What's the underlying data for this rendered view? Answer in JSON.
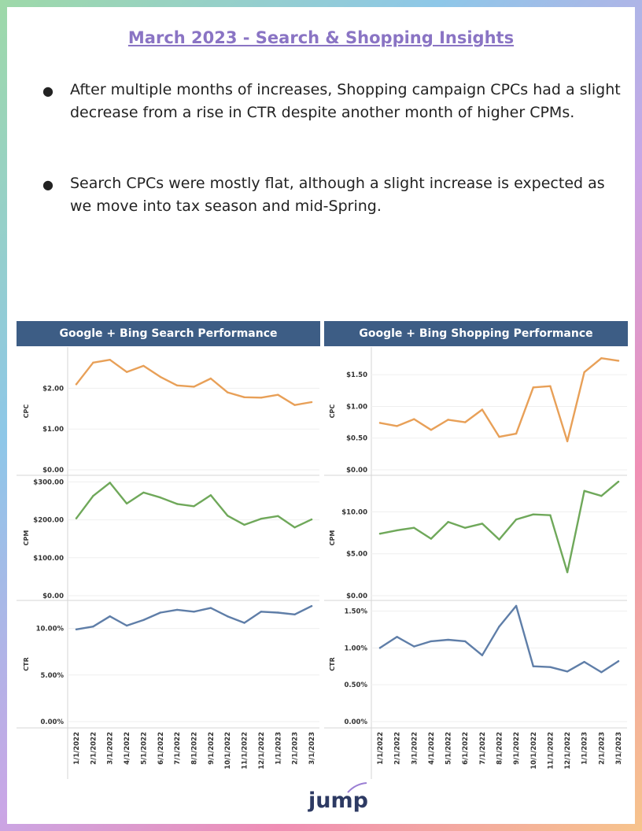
{
  "page": {
    "title": "March 2023 - Search & Shopping Insights",
    "bullets": [
      "After multiple months of increases, Shopping campaign CPCs had a slight decrease from a rise in CTR despite another month of higher CPMs.",
      "Search CPCs were mostly flat, although a slight increase is expected as we move into tax season and mid-Spring."
    ],
    "logo": "jump"
  },
  "colors": {
    "cpc": "#e8a058",
    "cpm": "#6fa85a",
    "ctr": "#5f7ea8",
    "header": "#3d5d85",
    "title": "#8a74c4"
  },
  "chart_data": [
    {
      "type": "line",
      "title": "Google + Bing Search Performance",
      "x": [
        "1/1/2022",
        "2/1/2022",
        "3/1/2022",
        "4/1/2022",
        "5/1/2022",
        "6/1/2022",
        "7/1/2022",
        "8/1/2022",
        "9/1/2022",
        "10/1/2022",
        "11/1/2022",
        "12/1/2022",
        "1/1/2023",
        "2/1/2023",
        "3/1/2023"
      ],
      "panels": [
        {
          "ylabel": "CPC",
          "ylim": [
            0,
            2.8
          ],
          "ticks": [
            0,
            1,
            2
          ],
          "tick_labels": [
            "$0.00",
            "$1.00",
            "$2.00"
          ],
          "values": [
            2.1,
            2.63,
            2.7,
            2.4,
            2.55,
            2.28,
            2.07,
            2.04,
            2.24,
            1.9,
            1.78,
            1.77,
            1.84,
            1.59,
            1.66
          ]
        },
        {
          "ylabel": "CPM",
          "ylim": [
            0,
            305
          ],
          "ticks": [
            0,
            100,
            200,
            300
          ],
          "tick_labels": [
            "$0.00",
            "$100.00",
            "$200.00",
            "$300.00"
          ],
          "values": [
            204,
            263,
            298,
            243,
            272,
            259,
            242,
            236,
            265,
            211,
            187,
            203,
            210,
            180,
            201
          ]
        },
        {
          "ylabel": "CTR",
          "ylim": [
            0,
            12.5
          ],
          "ticks": [
            0,
            5,
            10
          ],
          "tick_labels": [
            "0.00%",
            "5.00%",
            "10.00%"
          ],
          "values": [
            9.9,
            10.2,
            11.3,
            10.3,
            10.9,
            11.7,
            12.0,
            11.8,
            12.2,
            11.3,
            10.6,
            11.8,
            11.7,
            11.5,
            12.4
          ]
        }
      ]
    },
    {
      "type": "line",
      "title": "Google + Bing Shopping Performance",
      "x": [
        "1/1/2022",
        "2/1/2022",
        "3/1/2022",
        "4/1/2022",
        "5/1/2022",
        "6/1/2022",
        "7/1/2022",
        "8/1/2022",
        "9/1/2022",
        "10/1/2022",
        "11/1/2022",
        "12/1/2022",
        "1/1/2023",
        "2/1/2023",
        "3/1/2023"
      ],
      "panels": [
        {
          "ylabel": "CPC",
          "ylim": [
            0,
            1.8
          ],
          "ticks": [
            0,
            0.5,
            1,
            1.5
          ],
          "tick_labels": [
            "$0.00",
            "$0.50",
            "$1.00",
            "$1.50"
          ],
          "values": [
            0.74,
            0.69,
            0.8,
            0.63,
            0.79,
            0.75,
            0.95,
            0.52,
            0.57,
            1.3,
            1.32,
            0.45,
            1.54,
            1.76,
            1.72
          ]
        },
        {
          "ylabel": "CPM",
          "ylim": [
            0,
            13.8
          ],
          "ticks": [
            0,
            5,
            10
          ],
          "tick_labels": [
            "$0.00",
            "$5.00",
            "$10.00"
          ],
          "values": [
            7.4,
            7.8,
            8.1,
            6.8,
            8.8,
            8.1,
            8.6,
            6.7,
            9.1,
            9.7,
            9.6,
            2.8,
            12.5,
            11.9,
            13.6
          ]
        },
        {
          "ylabel": "CTR",
          "ylim": [
            0,
            1.58
          ],
          "ticks": [
            0,
            0.5,
            1,
            1.5
          ],
          "tick_labels": [
            "0.00%",
            "0.50%",
            "1.00%",
            "1.50%"
          ],
          "values": [
            1.0,
            1.15,
            1.02,
            1.09,
            1.11,
            1.09,
            0.9,
            1.29,
            1.57,
            0.75,
            0.74,
            0.68,
            0.81,
            0.67,
            0.82
          ]
        }
      ]
    }
  ]
}
